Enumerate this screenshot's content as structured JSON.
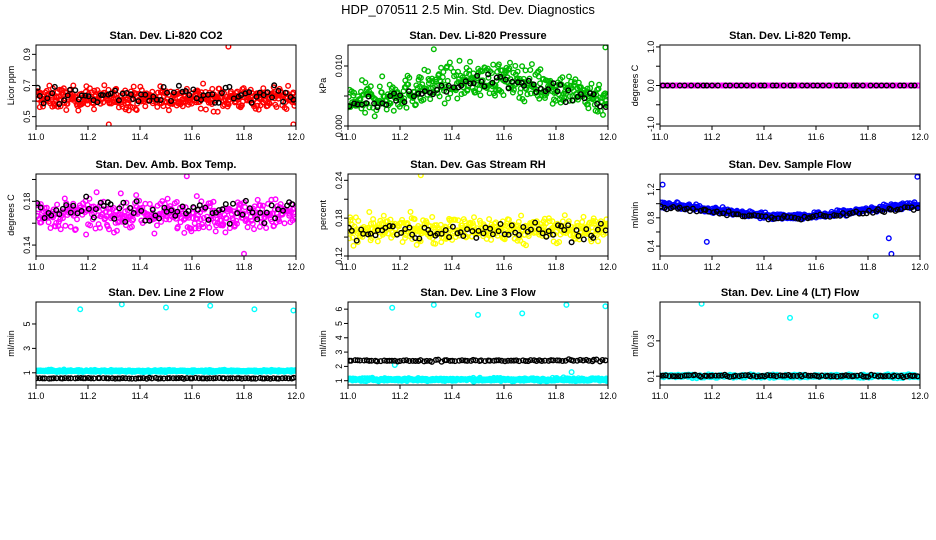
{
  "figure_title": "HDP_070511  2.5 Min. Std. Dev. Diagnostics",
  "chart_data": [
    {
      "type": "scatter",
      "title": "Stan. Dev. Li-820 CO2",
      "ylabel": "Licor ppm",
      "xlim": [
        11.0,
        12.0
      ],
      "ylim": [
        0.44,
        0.96
      ],
      "yticks": [
        0.5,
        0.6,
        0.7,
        0.8,
        0.9
      ],
      "yticklabels": [
        "0.5",
        "",
        "0.7",
        "",
        "0.9"
      ],
      "xticks": [
        "11.0",
        "11.2",
        "11.4",
        "11.6",
        "11.8",
        "12.0"
      ],
      "series": [
        {
          "name": "all",
          "color": "#ff0000",
          "n": 450,
          "model": {
            "kind": "noise",
            "base": 0.62,
            "amp": 0.06,
            "lo": 0.44,
            "hi": 0.96,
            "outliers": [
              [
                11.74,
                0.95
              ],
              [
                11.28,
                0.45
              ],
              [
                11.99,
                0.45
              ]
            ]
          }
        },
        {
          "name": "selected",
          "color": "#000000",
          "n": 70,
          "model": {
            "kind": "noise",
            "base": 0.63,
            "amp": 0.05,
            "lo": 0.44,
            "hi": 0.96,
            "outliers": []
          }
        }
      ]
    },
    {
      "type": "scatter",
      "title": "Stan. Dev. Li-820 Pressure",
      "ylabel": "kPa",
      "xlim": [
        11.0,
        12.0
      ],
      "ylim": [
        0.0,
        0.0135
      ],
      "yticks": [
        0.0,
        0.005,
        0.01
      ],
      "yticklabels": [
        "0.000",
        "",
        "0.010"
      ],
      "xticks": [
        "11.0",
        "11.2",
        "11.4",
        "11.6",
        "11.8",
        "12.0"
      ],
      "series": [
        {
          "name": "all",
          "color": "#00bb00",
          "n": 450,
          "model": {
            "kind": "hump",
            "edge": 0.003,
            "peak": 0.0078,
            "center": 11.55,
            "width": 0.42,
            "amp": 0.0024,
            "lo": 0.0,
            "hi": 0.0135,
            "outliers": [
              [
                11.33,
                0.0128
              ],
              [
                11.99,
                0.0131
              ]
            ]
          }
        },
        {
          "name": "selected",
          "color": "#000000",
          "n": 65,
          "model": {
            "kind": "hump",
            "edge": 0.002,
            "peak": 0.0075,
            "center": 11.55,
            "width": 0.42,
            "amp": 0.0012,
            "lo": 0.0,
            "hi": 0.0135,
            "outliers": []
          }
        }
      ]
    },
    {
      "type": "scatter",
      "title": "Stan. Dev. Li-820 Temp.",
      "ylabel": "degrees C",
      "xlim": [
        11.0,
        12.0
      ],
      "ylim": [
        -1.05,
        1.05
      ],
      "yticks": [
        -1.0,
        -0.5,
        0.0,
        0.5,
        1.0
      ],
      "yticklabels": [
        "-1.0",
        "",
        "0.0",
        "",
        "1.0"
      ],
      "xticks": [
        "11.0",
        "11.2",
        "11.4",
        "11.6",
        "11.8",
        "12.0"
      ],
      "series": [
        {
          "name": "all",
          "color": "#ff00ff",
          "n": 150,
          "model": {
            "kind": "const",
            "base": 0.0,
            "lo": -1.05,
            "hi": 1.05,
            "outliers": []
          }
        },
        {
          "name": "selected",
          "color": "#000000",
          "n": 45,
          "model": {
            "kind": "const",
            "base": 0.0,
            "lo": -1.05,
            "hi": 1.05,
            "outliers": []
          }
        }
      ]
    },
    {
      "type": "scatter",
      "title": "Stan. Dev. Amb. Box Temp.",
      "ylabel": "degrees C",
      "xlim": [
        11.0,
        12.0
      ],
      "ylim": [
        0.13,
        0.205
      ],
      "yticks": [
        0.14,
        0.16,
        0.18,
        0.2
      ],
      "yticklabels": [
        "0.14",
        "",
        "0.18",
        ""
      ],
      "xticks": [
        "11.0",
        "11.2",
        "11.4",
        "11.6",
        "11.8",
        "12.0"
      ],
      "series": [
        {
          "name": "all",
          "color": "#ff00ff",
          "n": 400,
          "model": {
            "kind": "noise",
            "base": 0.168,
            "amp": 0.012,
            "lo": 0.13,
            "hi": 0.205,
            "outliers": [
              [
                11.58,
                0.203
              ],
              [
                11.8,
                0.132
              ]
            ]
          }
        },
        {
          "name": "selected",
          "color": "#000000",
          "n": 70,
          "model": {
            "kind": "noise",
            "base": 0.17,
            "amp": 0.01,
            "lo": 0.13,
            "hi": 0.205,
            "outliers": []
          }
        }
      ]
    },
    {
      "type": "scatter",
      "title": "Stan. Dev. Gas Stream RH",
      "ylabel": "percent",
      "xlim": [
        11.0,
        12.0
      ],
      "ylim": [
        0.12,
        0.25
      ],
      "yticks": [
        0.12,
        0.15,
        0.18,
        0.21,
        0.24
      ],
      "yticklabels": [
        "0.12",
        "",
        "0.18",
        "",
        "0.24"
      ],
      "xticks": [
        "11.0",
        "11.2",
        "11.4",
        "11.6",
        "11.8",
        "12.0"
      ],
      "series": [
        {
          "name": "all",
          "color": "#ffff00",
          "n": 430,
          "model": {
            "kind": "noise",
            "base": 0.162,
            "amp": 0.017,
            "lo": 0.12,
            "hi": 0.25,
            "outliers": [
              [
                11.28,
                0.248
              ]
            ]
          }
        },
        {
          "name": "selected",
          "color": "#000000",
          "n": 70,
          "model": {
            "kind": "noise",
            "base": 0.16,
            "amp": 0.012,
            "lo": 0.12,
            "hi": 0.25,
            "outliers": []
          }
        }
      ]
    },
    {
      "type": "scatter",
      "title": "Stan. Dev. Sample Flow",
      "ylabel": "ml/min",
      "xlim": [
        11.0,
        12.0
      ],
      "ylim": [
        0.26,
        1.42
      ],
      "yticks": [
        0.4,
        0.6,
        0.8,
        1.0,
        1.2
      ],
      "yticklabels": [
        "0.4",
        "",
        "0.8",
        "",
        "1.2"
      ],
      "xticks": [
        "11.0",
        "11.2",
        "11.4",
        "11.6",
        "11.8",
        "12.0"
      ],
      "series": [
        {
          "name": "all",
          "color": "#0000ff",
          "n": 450,
          "model": {
            "kind": "dip",
            "edge": 1.02,
            "floor": 0.82,
            "center": 11.5,
            "width": 0.38,
            "amp": 0.035,
            "lo": 0.26,
            "hi": 1.42,
            "outliers": [
              [
                11.01,
                1.27
              ],
              [
                11.99,
                1.38
              ],
              [
                11.18,
                0.46
              ],
              [
                11.88,
                0.51
              ],
              [
                11.89,
                0.29
              ]
            ]
          }
        },
        {
          "name": "selected",
          "color": "#000000",
          "n": 80,
          "model": {
            "kind": "dip",
            "edge": 0.98,
            "floor": 0.8,
            "center": 11.5,
            "width": 0.38,
            "amp": 0.025,
            "lo": 0.26,
            "hi": 1.42,
            "outliers": []
          }
        }
      ]
    },
    {
      "type": "scatter",
      "title": "Stan. Dev. Line 2 Flow",
      "ylabel": "ml/min",
      "xlim": [
        11.0,
        12.0
      ],
      "ylim": [
        0.0,
        6.8
      ],
      "yticks": [
        1,
        3,
        5
      ],
      "yticklabels": [
        "1",
        "3",
        "5"
      ],
      "xticks": [
        "11.0",
        "11.2",
        "11.4",
        "11.6",
        "11.8",
        "12.0"
      ],
      "series": [
        {
          "name": "all",
          "color": "#00ffff",
          "n": 420,
          "model": {
            "kind": "noise",
            "base": 1.15,
            "amp": 0.07,
            "lo": 0.0,
            "hi": 6.8,
            "outliers": [
              [
                11.17,
                6.2
              ],
              [
                11.33,
                6.6
              ],
              [
                11.5,
                6.35
              ],
              [
                11.67,
                6.5
              ],
              [
                11.84,
                6.2
              ],
              [
                11.99,
                6.1
              ]
            ]
          }
        },
        {
          "name": "selected",
          "color": "#000000",
          "n": 90,
          "model": {
            "kind": "noise",
            "base": 0.55,
            "amp": 0.03,
            "lo": 0.0,
            "hi": 6.8,
            "outliers": []
          }
        }
      ]
    },
    {
      "type": "scatter",
      "title": "Stan. Dev. Line 3 Flow",
      "ylabel": "ml/min",
      "xlim": [
        11.0,
        12.0
      ],
      "ylim": [
        0.7,
        6.5
      ],
      "yticks": [
        1,
        2,
        3,
        4,
        5,
        6
      ],
      "yticklabels": [
        "1",
        "2",
        "3",
        "4",
        "5",
        "6"
      ],
      "xticks": [
        "11.0",
        "11.2",
        "11.4",
        "11.6",
        "11.8",
        "12.0"
      ],
      "series": [
        {
          "name": "all",
          "color": "#00ffff",
          "n": 420,
          "model": {
            "kind": "noise",
            "base": 1.08,
            "amp": 0.09,
            "lo": 0.7,
            "hi": 6.5,
            "outliers": [
              [
                11.17,
                6.1
              ],
              [
                11.33,
                6.3
              ],
              [
                11.5,
                5.6
              ],
              [
                11.67,
                5.7
              ],
              [
                11.84,
                6.3
              ],
              [
                11.99,
                6.2
              ],
              [
                11.18,
                2.1
              ],
              [
                11.86,
                1.6
              ]
            ]
          }
        },
        {
          "name": "selected",
          "color": "#000000",
          "n": 90,
          "model": {
            "kind": "noise",
            "base": 2.4,
            "amp": 0.06,
            "lo": 0.7,
            "hi": 6.5,
            "outliers": []
          }
        }
      ]
    },
    {
      "type": "scatter",
      "title": "Stan. Dev. Line 4 (LT) Flow",
      "ylabel": "ml/min",
      "xlim": [
        11.0,
        12.0
      ],
      "ylim": [
        0.05,
        0.52
      ],
      "yticks": [
        0.1,
        0.3
      ],
      "yticklabels": [
        "0.1",
        "0.3"
      ],
      "xticks": [
        "11.0",
        "11.2",
        "11.4",
        "11.6",
        "11.8",
        "12.0"
      ],
      "series": [
        {
          "name": "all",
          "color": "#00ffff",
          "n": 420,
          "model": {
            "kind": "noise",
            "base": 0.1,
            "amp": 0.008,
            "lo": 0.05,
            "hi": 0.52,
            "outliers": [
              [
                11.16,
                0.51
              ],
              [
                11.5,
                0.43
              ],
              [
                11.83,
                0.44
              ]
            ]
          }
        },
        {
          "name": "selected",
          "color": "#000000",
          "n": 90,
          "model": {
            "kind": "noise",
            "base": 0.102,
            "amp": 0.006,
            "lo": 0.05,
            "hi": 0.52,
            "outliers": []
          }
        }
      ]
    }
  ]
}
